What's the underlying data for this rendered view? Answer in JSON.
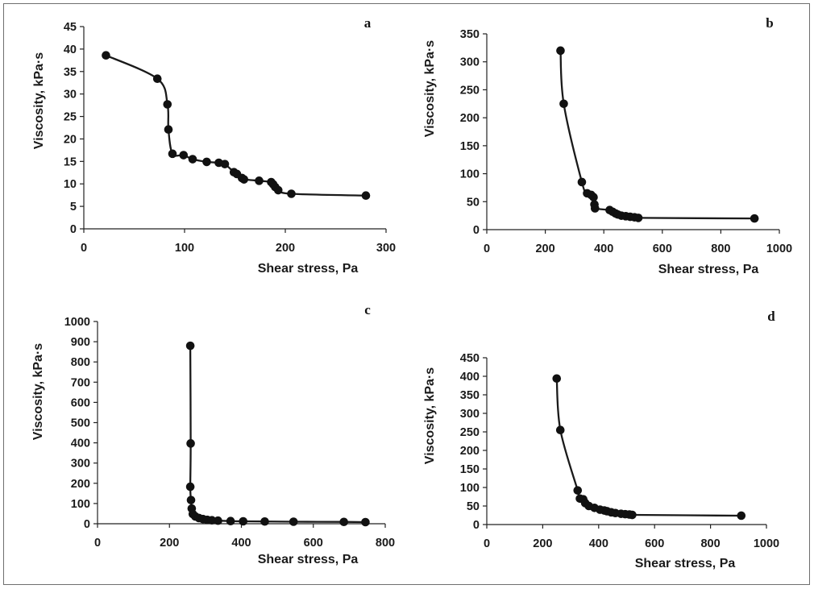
{
  "colors": {
    "marker": "#111111",
    "line": "#1a1a1a",
    "axis": "#222222",
    "border": "#6e6e6e"
  },
  "chart_data": [
    {
      "panel": "a",
      "type": "line",
      "xlabel": "Shear stress, Pa",
      "ylabel": "Viscosity, kPa·s",
      "xlim": [
        0,
        300
      ],
      "ylim": [
        0,
        45
      ],
      "xticks": [
        0,
        100,
        200,
        300
      ],
      "yticks": [
        0,
        5,
        10,
        15,
        20,
        25,
        30,
        35,
        40,
        45
      ],
      "series": [
        {
          "name": "a",
          "x": [
            22,
            73,
            83,
            84,
            88,
            99,
            108,
            122,
            134,
            140,
            149,
            152,
            157,
            159,
            174,
            186,
            188,
            190,
            193,
            206,
            280
          ],
          "y": [
            38.6,
            33.4,
            27.7,
            22.1,
            16.7,
            16.4,
            15.5,
            14.9,
            14.7,
            14.4,
            12.6,
            12.2,
            11.3,
            11.0,
            10.7,
            10.4,
            9.9,
            9.3,
            8.6,
            7.8,
            7.4
          ]
        }
      ]
    },
    {
      "panel": "b",
      "type": "line",
      "xlabel": "Shear stress, Pa",
      "ylabel": "Viscosity, kPa·s",
      "xlim": [
        0,
        1000
      ],
      "ylim": [
        0,
        350
      ],
      "xticks": [
        0,
        200,
        400,
        600,
        800,
        1000
      ],
      "yticks": [
        0,
        50,
        100,
        150,
        200,
        250,
        300,
        350
      ],
      "series": [
        {
          "name": "b",
          "x": [
            252,
            263,
            325,
            343,
            357,
            365,
            368,
            370,
            420,
            430,
            440,
            448,
            460,
            475,
            490,
            505,
            518,
            915
          ],
          "y": [
            320,
            225,
            85,
            65,
            62,
            58,
            45,
            38,
            35,
            32,
            29,
            27,
            25,
            24,
            23,
            22,
            21,
            20
          ]
        }
      ]
    },
    {
      "panel": "c",
      "type": "line",
      "xlabel": "Shear stress, Pa",
      "ylabel": "Viscosity, kPa·s",
      "xlim": [
        0,
        800
      ],
      "ylim": [
        0,
        1000
      ],
      "xticks": [
        0,
        200,
        400,
        600,
        800
      ],
      "yticks": [
        0,
        100,
        200,
        300,
        400,
        500,
        600,
        700,
        800,
        900,
        1000
      ],
      "series": [
        {
          "name": "c",
          "x": [
            258,
            259,
            258,
            260,
            262,
            265,
            272,
            282,
            293,
            305,
            318,
            335,
            370,
            405,
            465,
            545,
            685,
            745
          ],
          "y": [
            880,
            397,
            183,
            117,
            75,
            48,
            36,
            28,
            23,
            19,
            17,
            15,
            13,
            12,
            11,
            10,
            9,
            8
          ]
        }
      ]
    },
    {
      "panel": "d",
      "type": "line",
      "xlabel": "Shear stress, Pa",
      "ylabel": "Viscosity, kPa·s",
      "xlim": [
        0,
        1000
      ],
      "ylim": [
        0,
        450
      ],
      "xticks": [
        0,
        200,
        400,
        600,
        800,
        1000
      ],
      "yticks": [
        0,
        50,
        100,
        150,
        200,
        250,
        300,
        350,
        400,
        450
      ],
      "series": [
        {
          "name": "d",
          "x": [
            250,
            263,
            325,
            333,
            345,
            352,
            365,
            385,
            405,
            420,
            430,
            445,
            460,
            480,
            495,
            510,
            520,
            910
          ],
          "y": [
            394,
            255,
            92,
            70,
            68,
            58,
            50,
            45,
            40,
            38,
            36,
            33,
            31,
            29,
            28,
            27,
            26,
            24
          ]
        }
      ]
    }
  ]
}
